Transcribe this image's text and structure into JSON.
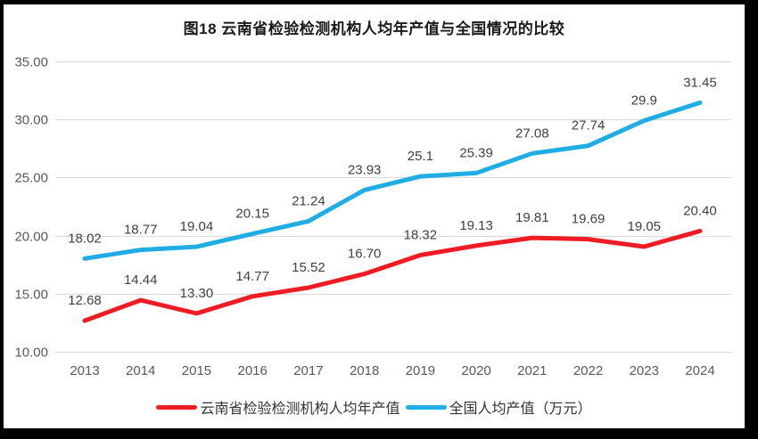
{
  "window": {
    "frame_color": "#000000",
    "background_color": "#ffffff"
  },
  "chart_data": {
    "type": "line",
    "title": "图18  云南省检验检测机构人均年产值与全国情况的比较",
    "categories": [
      "2013",
      "2014",
      "2015",
      "2016",
      "2017",
      "2018",
      "2019",
      "2020",
      "2021",
      "2022",
      "2023",
      "2024"
    ],
    "series": [
      {
        "name": "云南省检验检测机构人均年产值",
        "color": "#ee1c25",
        "values": [
          12.68,
          14.44,
          13.3,
          14.77,
          15.52,
          16.7,
          18.32,
          19.13,
          19.81,
          19.69,
          19.05,
          20.4
        ],
        "labels": [
          "12.68",
          "14.44",
          "13.30",
          "14.77",
          "15.52",
          "16.70",
          "18.32",
          "19.13",
          "19.81",
          "19.69",
          "19.05",
          "20.40"
        ]
      },
      {
        "name": "全国人均产值（万元）",
        "color": "#1fadе4",
        "values": [
          18.02,
          18.77,
          19.04,
          20.15,
          21.24,
          23.93,
          25.1,
          25.39,
          27.08,
          27.74,
          29.9,
          31.45
        ],
        "labels": [
          "18.02",
          "18.77",
          "19.04",
          "20.15",
          "21.24",
          "23.93",
          "25.1",
          "25.39",
          "27.08",
          "27.74",
          "29.9",
          "31.45"
        ]
      }
    ],
    "xlabel": "",
    "ylabel": "",
    "ylim": [
      10,
      35
    ],
    "yticks": [
      {
        "value": 10,
        "label": "10.00"
      },
      {
        "value": 15,
        "label": "15.00"
      },
      {
        "value": 20,
        "label": "20.00"
      },
      {
        "value": 25,
        "label": "25.00"
      },
      {
        "value": 30,
        "label": "30.00"
      },
      {
        "value": 35,
        "label": "35.00"
      }
    ],
    "grid": true,
    "legend_position": "bottom",
    "styles": {
      "grid_color": "#d9d9d9",
      "axis_text_color": "#595959",
      "data_label_color": "#404040",
      "line_width": 5
    }
  }
}
